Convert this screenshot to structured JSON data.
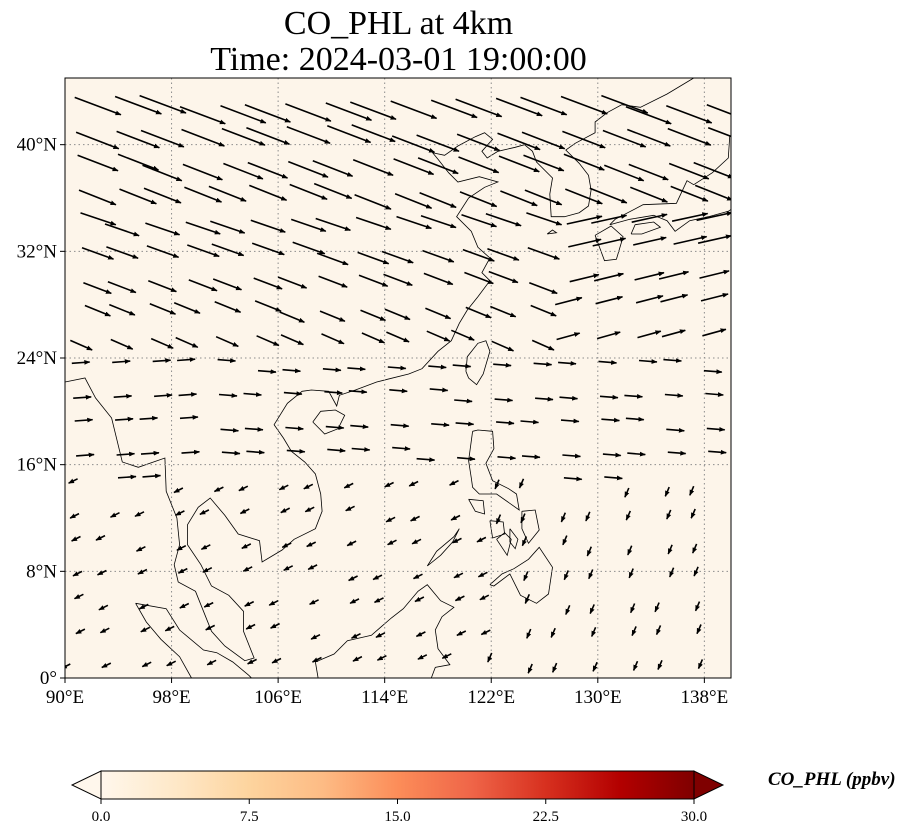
{
  "title": {
    "line1": "CO_PHL at 4km",
    "line2": "Time: 2024-03-01 19:00:00"
  },
  "map": {
    "projection": "PlateCarree",
    "lon_range": [
      90,
      140
    ],
    "lat_range": [
      0,
      45
    ],
    "gridlines": "dotted",
    "background_color": "#fdf5ea",
    "coastline_color": "#000000"
  },
  "axes": {
    "lon_ticks": [
      "90°E",
      "98°E",
      "106°E",
      "114°E",
      "122°E",
      "130°E",
      "138°E"
    ],
    "lon_values": [
      90,
      98,
      106,
      114,
      122,
      130,
      138
    ],
    "lat_ticks": [
      "0°",
      "8°N",
      "16°N",
      "24°N",
      "32°N",
      "40°N"
    ],
    "lat_values": [
      0,
      8,
      16,
      24,
      32,
      40
    ]
  },
  "colorbar": {
    "label": "CO_PHL (ppbv)",
    "cmap": "OrRd",
    "min": 0.0,
    "max": 30.0,
    "extend": "both",
    "ticks": [
      "0.0",
      "7.5",
      "15.0",
      "22.5",
      "30.0"
    ],
    "tick_values": [
      0,
      7.5,
      15,
      22.5,
      30
    ],
    "colors": [
      "#fff7ec",
      "#fee8c8",
      "#fdd49e",
      "#fdbb84",
      "#fc8d59",
      "#ef6548",
      "#d7301f",
      "#b30000",
      "#7f0000"
    ]
  }
}
